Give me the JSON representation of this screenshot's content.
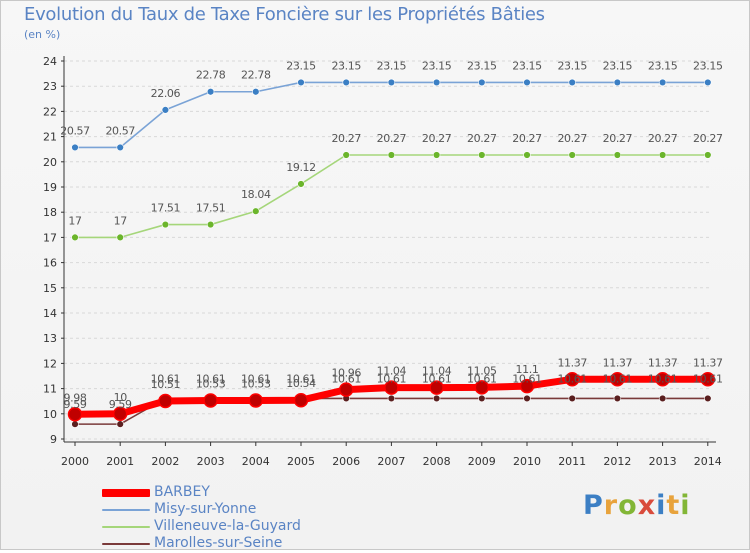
{
  "chart_data": {
    "type": "line",
    "title": "Evolution du Taux de Taxe Foncière sur les Propriétés Bâties",
    "ylabel": "(en %)",
    "xlabel": "",
    "ylim": [
      9,
      24
    ],
    "yticks": [
      "9",
      "10",
      "11",
      "12",
      "13",
      "14",
      "15",
      "16",
      "17",
      "18",
      "19",
      "20",
      "21",
      "22",
      "23",
      "24"
    ],
    "categories": [
      "2000",
      "2001",
      "2002",
      "2003",
      "2004",
      "2005",
      "2006",
      "2007",
      "2008",
      "2009",
      "2010",
      "2011",
      "2012",
      "2013",
      "2014"
    ],
    "series": [
      {
        "name": "Misy-sur-Yonne",
        "color": "#7aa3d6",
        "marker": "#3b7fc4",
        "values": [
          20.57,
          20.57,
          22.06,
          22.78,
          22.78,
          23.15,
          23.15,
          23.15,
          23.15,
          23.15,
          23.15,
          23.15,
          23.15,
          23.15,
          23.15
        ],
        "labels": [
          "20.57",
          "20.57",
          "22.06",
          "22.78",
          "22.78",
          "23.15",
          "23.15",
          "23.15",
          "23.15",
          "23.15",
          "23.15",
          "23.15",
          "23.15",
          "23.15",
          "23.15"
        ]
      },
      {
        "name": "Villeneuve-la-Guyard",
        "color": "#a5d67a",
        "marker": "#6bb52b",
        "values": [
          17,
          17,
          17.51,
          17.51,
          18.04,
          19.12,
          20.27,
          20.27,
          20.27,
          20.27,
          20.27,
          20.27,
          20.27,
          20.27,
          20.27
        ],
        "labels": [
          "17",
          "17",
          "17.51",
          "17.51",
          "18.04",
          "19.12",
          "20.27",
          "20.27",
          "20.27",
          "20.27",
          "20.27",
          "20.27",
          "20.27",
          "20.27",
          "20.27"
        ]
      },
      {
        "name": "Marolles-sur-Seine",
        "color": "#7a3a3a",
        "marker": "#5a1f1f",
        "values": [
          9.59,
          9.59,
          10.61,
          10.61,
          10.61,
          10.61,
          10.61,
          10.61,
          10.61,
          10.61,
          10.61,
          10.61,
          10.61,
          10.61,
          10.61
        ],
        "labels": [
          "9.59",
          "9.59",
          "10.61",
          "10.61",
          "10.61",
          "10.61",
          "10.61",
          "10.61",
          "10.61",
          "10.61",
          "10.61",
          "10.61",
          "10.61",
          "10.61",
          "10.61"
        ]
      },
      {
        "name": "BARBEY",
        "color": "#ff0000",
        "marker": "#c00000",
        "thick": true,
        "values": [
          9.98,
          10,
          10.51,
          10.53,
          10.53,
          10.54,
          10.96,
          11.04,
          11.04,
          11.05,
          11.1,
          11.37,
          11.37,
          11.37,
          11.37
        ],
        "labels": [
          "9.98",
          "10",
          "10.51",
          "10.53",
          "10.53",
          "10.54",
          "10.96",
          "11.04",
          "11.04",
          "11.05",
          "11.1",
          "11.37",
          "11.37",
          "11.37",
          "11.37"
        ]
      }
    ],
    "legend": [
      "BARBEY",
      "Misy-sur-Yonne",
      "Villeneuve-la-Guyard",
      "Marolles-sur-Seine"
    ],
    "legend_position": "bottom-left",
    "grid": "dashed-horizontal"
  },
  "colors": {
    "title": "#5a84c4",
    "axis": "#333333",
    "grid": "#e08080",
    "label": "#555555"
  },
  "watermark": "Proxiti"
}
